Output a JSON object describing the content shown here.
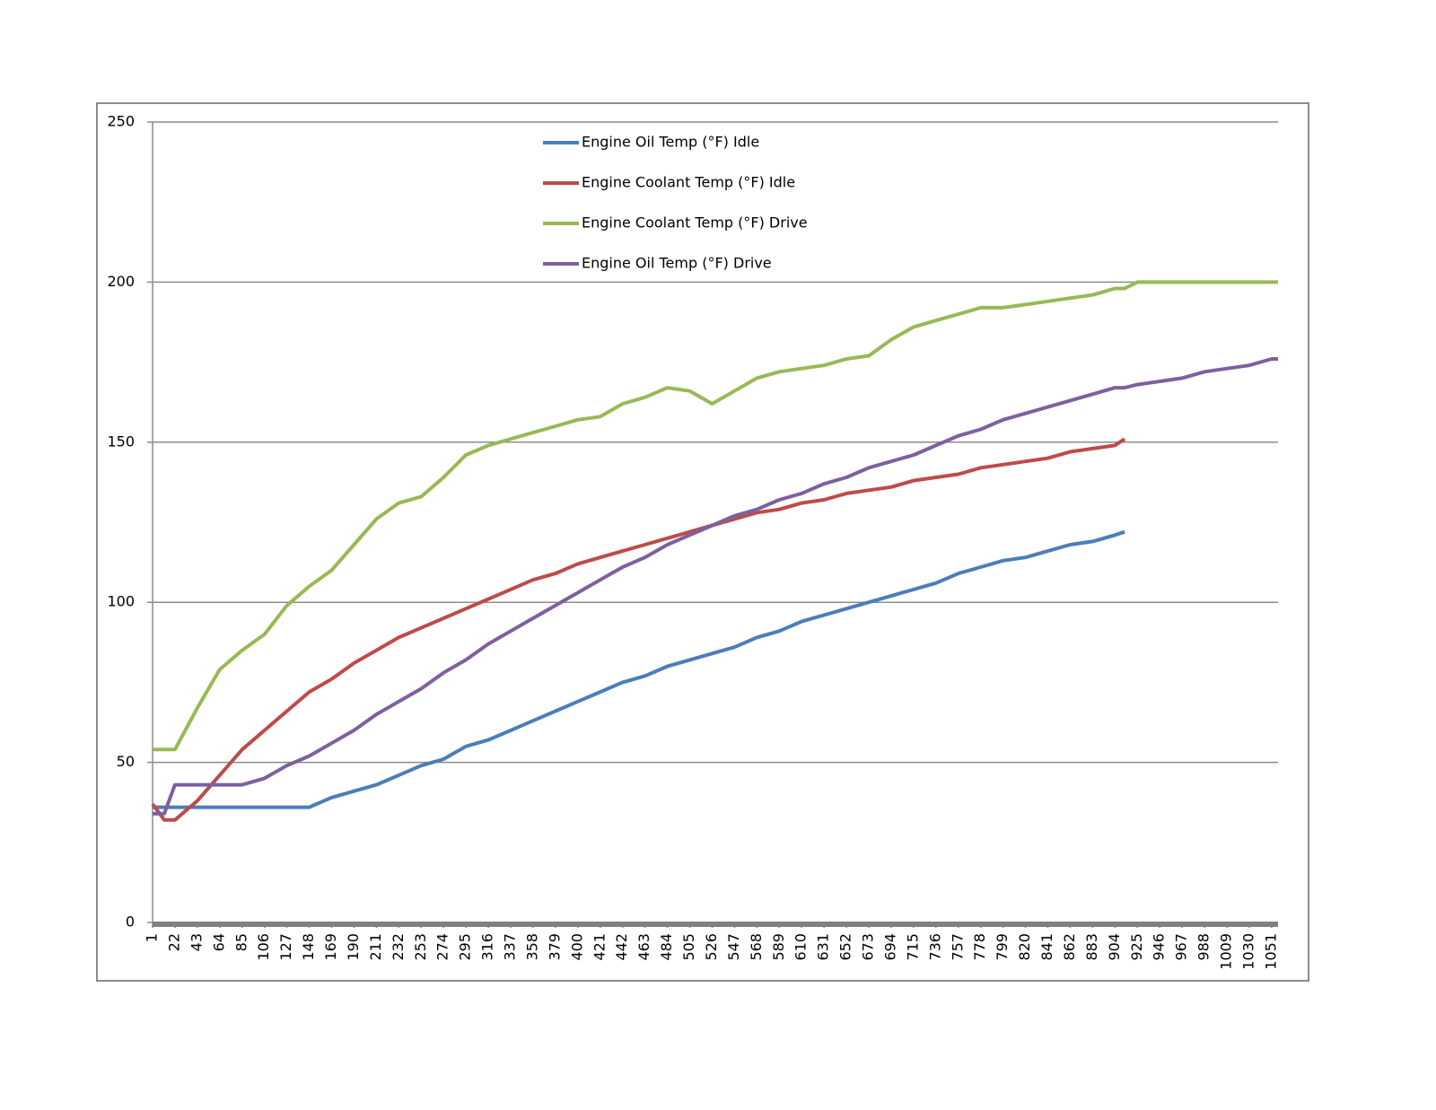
{
  "chart_data": {
    "type": "line",
    "x": [
      1,
      12,
      22,
      43,
      64,
      85,
      106,
      127,
      148,
      169,
      190,
      211,
      232,
      253,
      274,
      295,
      316,
      337,
      358,
      379,
      400,
      421,
      442,
      463,
      484,
      505,
      526,
      547,
      568,
      589,
      610,
      631,
      652,
      673,
      694,
      715,
      736,
      757,
      778,
      799,
      820,
      841,
      862,
      883,
      904,
      913,
      925,
      946,
      967,
      988,
      1009,
      1030,
      1051,
      1057
    ],
    "series": [
      {
        "name": "Engine Oil Temp (°F) Idle",
        "color": "#4a7ebb",
        "values": [
          36,
          36,
          36,
          36,
          36,
          36,
          36,
          36,
          36,
          39,
          41,
          43,
          46,
          49,
          51,
          55,
          57,
          60,
          63,
          66,
          69,
          72,
          75,
          77,
          80,
          82,
          84,
          86,
          89,
          91,
          94,
          96,
          98,
          100,
          102,
          104,
          106,
          109,
          111,
          113,
          114,
          116,
          118,
          119,
          121,
          122,
          null,
          null,
          null,
          null,
          null,
          null,
          null,
          null
        ]
      },
      {
        "name": "Engine Coolant Temp (°F) Idle",
        "color": "#be4b48",
        "values": [
          37,
          32,
          32,
          38,
          46,
          54,
          60,
          66,
          72,
          76,
          81,
          85,
          89,
          92,
          95,
          98,
          101,
          104,
          107,
          109,
          112,
          114,
          116,
          118,
          120,
          122,
          124,
          126,
          128,
          129,
          131,
          132,
          134,
          135,
          136,
          138,
          139,
          140,
          142,
          143,
          144,
          145,
          147,
          148,
          149,
          151,
          null,
          null,
          null,
          null,
          null,
          null,
          null,
          null
        ]
      },
      {
        "name": "Engine Coolant Temp (°F) Drive",
        "color": "#98b954",
        "values": [
          54,
          54,
          54,
          67,
          79,
          85,
          90,
          99,
          105,
          110,
          118,
          126,
          131,
          133,
          139,
          146,
          149,
          151,
          153,
          155,
          157,
          158,
          162,
          164,
          167,
          166,
          162,
          166,
          170,
          172,
          173,
          174,
          176,
          177,
          182,
          186,
          188,
          190,
          192,
          192,
          193,
          194,
          195,
          196,
          198,
          198,
          200,
          200,
          200,
          200,
          200,
          200,
          200,
          200
        ]
      },
      {
        "name": "Engine Oil Temp (°F) Drive",
        "color": "#7d60a0",
        "values": [
          34,
          34,
          43,
          43,
          43,
          43,
          45,
          49,
          52,
          56,
          60,
          65,
          69,
          73,
          78,
          82,
          87,
          91,
          95,
          99,
          103,
          107,
          111,
          114,
          118,
          121,
          124,
          127,
          129,
          132,
          134,
          137,
          139,
          142,
          144,
          146,
          149,
          152,
          154,
          157,
          159,
          161,
          163,
          165,
          167,
          167,
          168,
          169,
          170,
          172,
          173,
          174,
          176,
          176
        ]
      }
    ],
    "xlim": [
      1,
      1057
    ],
    "xticks": [
      1,
      22,
      43,
      64,
      85,
      106,
      127,
      148,
      169,
      190,
      211,
      232,
      253,
      274,
      295,
      316,
      337,
      358,
      379,
      400,
      421,
      442,
      463,
      484,
      505,
      526,
      547,
      568,
      589,
      610,
      631,
      652,
      673,
      694,
      715,
      736,
      757,
      778,
      799,
      820,
      841,
      862,
      883,
      904,
      925,
      946,
      967,
      988,
      1009,
      1030,
      1051
    ],
    "ylim": [
      0,
      250
    ],
    "yticks": [
      0,
      50,
      100,
      150,
      200,
      250
    ],
    "grid": true
  }
}
